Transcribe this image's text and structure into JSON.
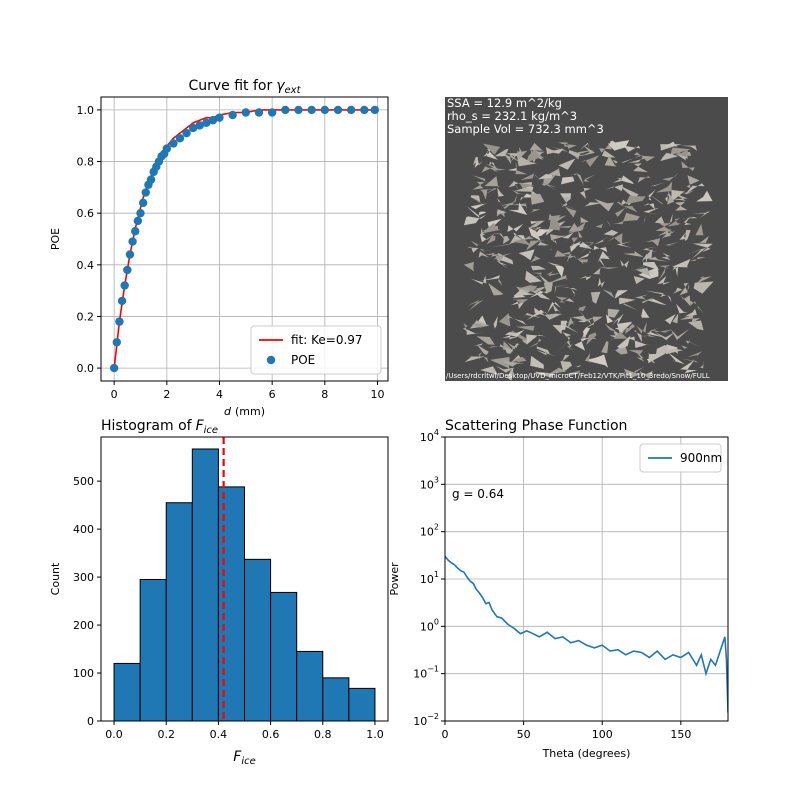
{
  "chart_data": [
    {
      "type": "scatter",
      "title": {
        "text": "Curve fit for",
        "symbol": "γ",
        "subscript": "ext"
      },
      "xlabel": {
        "symbol": "d",
        "unit": "(mm)"
      },
      "ylabel": "POE",
      "x": [
        0,
        0.1,
        0.2,
        0.3,
        0.4,
        0.5,
        0.6,
        0.7,
        0.8,
        0.9,
        1.0,
        1.1,
        1.2,
        1.3,
        1.4,
        1.5,
        1.6,
        1.7,
        1.8,
        1.9,
        2.0,
        2.25,
        2.5,
        2.75,
        3.0,
        3.25,
        3.5,
        3.75,
        4.0,
        4.5,
        5,
        5.5,
        6,
        6.5,
        7,
        7.5,
        8,
        8.5,
        9,
        9.5,
        9.9
      ],
      "series": [
        {
          "name": "fit: Ke=0.97",
          "type": "line",
          "color": "#ff0000",
          "values": [
            0,
            0.09,
            0.18,
            0.25,
            0.32,
            0.38,
            0.44,
            0.49,
            0.54,
            0.58,
            0.62,
            0.66,
            0.69,
            0.72,
            0.74,
            0.77,
            0.79,
            0.81,
            0.83,
            0.84,
            0.86,
            0.89,
            0.91,
            0.93,
            0.95,
            0.96,
            0.97,
            0.97,
            0.98,
            0.99,
            0.99,
            1.0,
            1.0,
            1.0,
            1.0,
            1.0,
            1.0,
            1.0,
            1.0,
            1.0,
            1.0
          ]
        },
        {
          "name": "POE",
          "type": "scatter",
          "color": "#1f77b4",
          "values": [
            0,
            0.1,
            0.18,
            0.26,
            0.32,
            0.38,
            0.44,
            0.49,
            0.53,
            0.57,
            0.6,
            0.64,
            0.68,
            0.71,
            0.73,
            0.76,
            0.78,
            0.8,
            0.82,
            0.83,
            0.85,
            0.87,
            0.89,
            0.91,
            0.93,
            0.94,
            0.95,
            0.96,
            0.97,
            0.98,
            0.99,
            0.99,
            0.99,
            1.0,
            1.0,
            1.0,
            1.0,
            1.0,
            1.0,
            1.0,
            1.0
          ]
        }
      ],
      "xlim": [
        -0.5,
        10.4
      ],
      "xticks": [
        0,
        2,
        4,
        6,
        8,
        10
      ],
      "ylim": [
        -0.05,
        1.05
      ],
      "yticks": [
        {
          "value": 0,
          "label": "0.0"
        },
        {
          "value": 0.2,
          "label": "0.2"
        },
        {
          "value": 0.4,
          "label": "0.4"
        },
        {
          "value": 0.6,
          "label": "0.6"
        },
        {
          "value": 0.8,
          "label": "0.8"
        },
        {
          "value": 1.0,
          "label": "1.0"
        }
      ],
      "grid": true,
      "legend": "lower right"
    },
    {
      "type": "image",
      "annotations": [
        "SSA = 12.9 m^2/kg",
        "rho_s = 232.1 kg/m^3",
        "Sample Vol = 732.3 mm^3"
      ],
      "footer": "/Users/rdcrltwl/Desktop/UVD_microCT/Feb12/VTK/Pit1_10_3redo/Snow/FULL"
    },
    {
      "type": "histogram",
      "title": {
        "text": "Histogram of",
        "symbol": "F",
        "subscript": "ice"
      },
      "xlabel": {
        "symbol": "F",
        "subscript": "ice"
      },
      "ylabel": "Count",
      "bins": [
        0,
        0.1,
        0.2,
        0.3,
        0.4,
        0.5,
        0.6,
        0.7,
        0.8,
        0.9,
        1.0
      ],
      "counts": [
        120,
        295,
        455,
        567,
        488,
        337,
        268,
        145,
        90,
        68
      ],
      "color": "#1f77b4",
      "vline": 0.42,
      "vline_color": "#ff0000",
      "xlim": [
        -0.05,
        1.05
      ],
      "xticks": [
        {
          "value": 0,
          "label": "0.0"
        },
        {
          "value": 0.2,
          "label": "0.2"
        },
        {
          "value": 0.4,
          "label": "0.4"
        },
        {
          "value": 0.6,
          "label": "0.6"
        },
        {
          "value": 0.8,
          "label": "0.8"
        },
        {
          "value": 1.0,
          "label": "1.0"
        }
      ],
      "ylim": [
        0,
        592
      ],
      "yticks": [
        0,
        100,
        200,
        300,
        400,
        500
      ],
      "grid": false
    },
    {
      "type": "line",
      "title": "Scattering Phase Function",
      "xlabel": "Theta (degrees)",
      "ylabel": "Power",
      "annotation": "g = 0.64",
      "x": [
        0,
        2,
        4,
        6,
        8,
        10,
        12,
        14,
        16,
        18,
        20,
        22,
        24,
        26,
        28,
        30,
        33,
        36,
        40,
        44,
        48,
        52,
        56,
        60,
        65,
        70,
        75,
        80,
        85,
        90,
        95,
        100,
        105,
        110,
        115,
        120,
        125,
        130,
        135,
        140,
        145,
        150,
        155,
        160,
        163,
        166,
        169,
        172,
        175,
        178,
        179,
        180
      ],
      "series": [
        {
          "name": "900nm",
          "color": "#1f77b4",
          "values": [
            30,
            25,
            22,
            20,
            17,
            15,
            14,
            11,
            9,
            8,
            6,
            5,
            4,
            3,
            3.2,
            2.2,
            1.6,
            1.5,
            1.1,
            0.9,
            0.7,
            0.8,
            0.7,
            0.6,
            0.75,
            0.55,
            0.6,
            0.45,
            0.5,
            0.4,
            0.35,
            0.4,
            0.3,
            0.32,
            0.25,
            0.3,
            0.28,
            0.22,
            0.3,
            0.2,
            0.25,
            0.22,
            0.28,
            0.15,
            0.25,
            0.1,
            0.2,
            0.15,
            0.3,
            0.6,
            0.2,
            0.015
          ]
        }
      ],
      "xlim": [
        0,
        180
      ],
      "xticks": [
        0,
        50,
        100,
        150
      ],
      "ylim": [
        0.01,
        10000
      ],
      "ylog": true,
      "yticks": [
        {
          "value": 0.01,
          "label": "10",
          "exponent": "−2"
        },
        {
          "value": 0.1,
          "label": "10",
          "exponent": "−1"
        },
        {
          "value": 1,
          "label": "10",
          "exponent": "0"
        },
        {
          "value": 10,
          "label": "10",
          "exponent": "1"
        },
        {
          "value": 100,
          "label": "10",
          "exponent": "2"
        },
        {
          "value": 1000,
          "label": "10",
          "exponent": "3"
        },
        {
          "value": 10000,
          "label": "10",
          "exponent": "4"
        }
      ],
      "grid": true,
      "legend": "upper right"
    }
  ]
}
